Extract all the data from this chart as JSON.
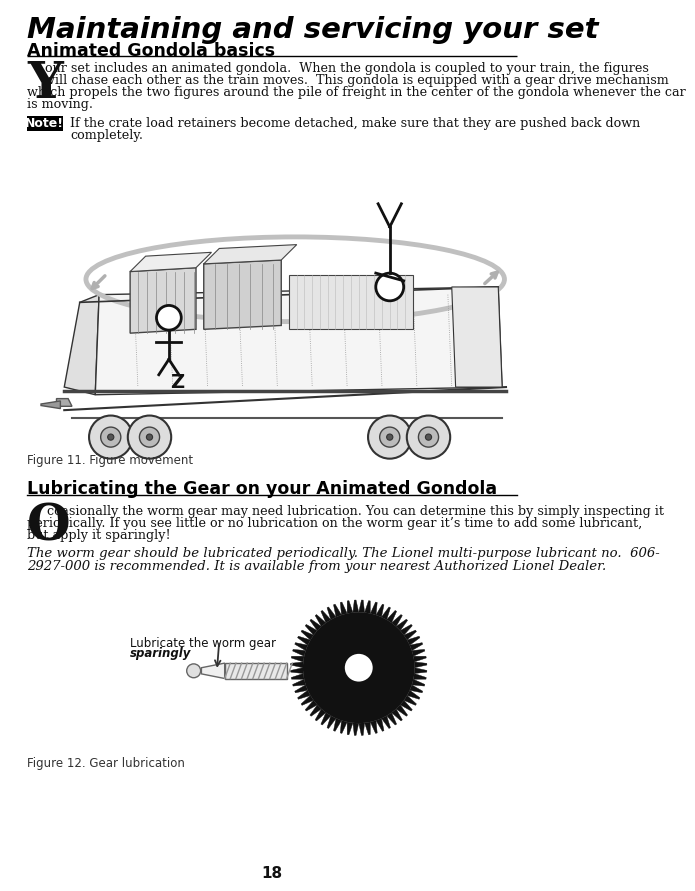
{
  "title": "Maintaining and servicing your set",
  "section1_header": "Animated Gondola basics",
  "note_label": "Note!",
  "note_text_line1": "If the crate load retainers become detached, make sure that they are pushed back down",
  "note_text_line2": "completely.",
  "fig11_caption": "Figure 11. Figure movement",
  "section2_header": "Lubricating the Gear on your Animated Gondola",
  "body2_line1": "ccasionally the worm gear may need lubrication. You can determine this by simply inspecting it",
  "body2_line2": "periodically. If you see little or no lubrication on the worm gear it’s time to add some lubricant,",
  "body2_line3": "but apply it sparingly!",
  "italic_line1": "The worm gear should be lubricated periodically. The Lionel multi-purpose lubricant no.  606-",
  "italic_line2": "2927-000 is recommended. It is available from your nearest Authorized Lionel Dealer.",
  "annot_line1": "Lubricate the worm gear",
  "annot_line2": "sparingly",
  "fig12_caption": "Figure 12. Gear lubrication",
  "page_number": "18",
  "bg_color": "#ffffff",
  "text_color": "#111111",
  "title_color": "#000000",
  "note_bg": "#000000",
  "note_fg": "#ffffff",
  "line_color": "#000000",
  "gray_arrow": "#aaaaaa",
  "gear_color": "#111111",
  "worm_color": "#dddddd"
}
